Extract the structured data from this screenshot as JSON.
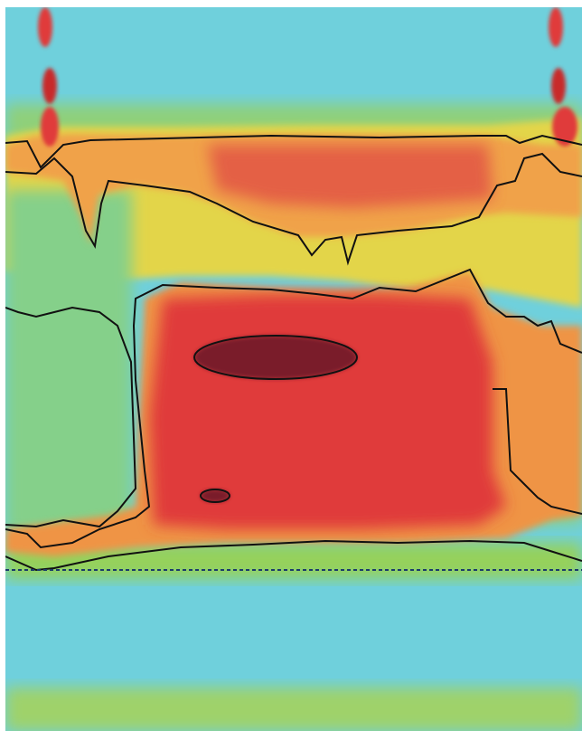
{
  "chart_data": {
    "type": "heatmap",
    "title": "",
    "xlabel": "",
    "ylabel": "",
    "colorscale": [
      "#6fd0dc",
      "#7fd0a8",
      "#93cf5a",
      "#d9d94a",
      "#f1c24a",
      "#f0a24a",
      "#ea6a3f",
      "#e03a3a",
      "#7a1f2a"
    ],
    "background_color": "#6fd0dc",
    "contour_color": "#111111",
    "reference_line": {
      "style": "dashed",
      "color": "#1a3a6a"
    },
    "grid": false,
    "legend": "none"
  }
}
